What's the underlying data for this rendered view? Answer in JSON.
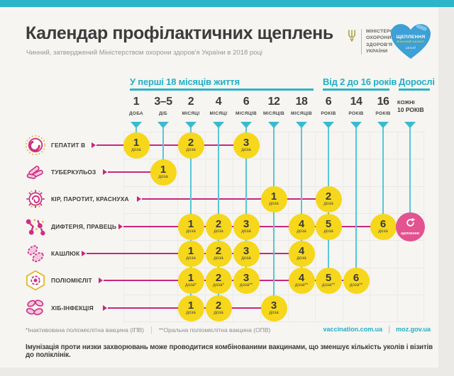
{
  "header": {
    "title": "Календар профілактичних щеплень",
    "subtitle": "Чинний, затверджений Міністерством охорони здоров'я України в 2018 році",
    "ministry_logo": {
      "icon": "trident-icon",
      "lines": [
        "МІНІСТЕРСТВО",
        "ОХОРОНИ",
        "ЗДОРОВ'Я",
        "УКРАЇНИ"
      ]
    },
    "heart_logo": {
      "icon": "heart-bandaid-icon",
      "title": "ЩЕПЛЕННЯ",
      "subtitle": "ВЧАСНИЙ ЗАХИСТ",
      "brand": "unicef",
      "color": "#3da0d6"
    }
  },
  "timeline": {
    "groups": [
      {
        "label": "У перші 18 місяців життя"
      },
      {
        "label": "Від 2 до 16 років"
      },
      {
        "label": "Дорослі"
      }
    ],
    "columns": [
      {
        "value": "1",
        "unit": "ДОБА"
      },
      {
        "value": "3–5",
        "unit": "ДІБ"
      },
      {
        "value": "2",
        "unit": "МІСЯЦІ"
      },
      {
        "value": "4",
        "unit": "МІСЯЦІ"
      },
      {
        "value": "6",
        "unit": "МІСЯЦІВ"
      },
      {
        "value": "12",
        "unit": "МІСЯЦІВ"
      },
      {
        "value": "18",
        "unit": "МІСЯЦІВ"
      },
      {
        "value": "6",
        "unit": "РОКІВ"
      },
      {
        "value": "14",
        "unit": "РОКІВ"
      },
      {
        "value": "16",
        "unit": "РОКІВ"
      },
      {
        "value": "КОЖНІ",
        "unit": "10 РОКІВ"
      }
    ]
  },
  "rows": [
    {
      "label": "ГЕПАТИТ В",
      "icon": "hepatitis-b-virus-icon",
      "doses": [
        {
          "col": 0,
          "num": "1",
          "unit": "доза"
        },
        {
          "col": 2,
          "num": "2",
          "unit": "доза"
        },
        {
          "col": 4,
          "num": "3",
          "unit": "доза"
        }
      ]
    },
    {
      "label": "ТУБЕРКУЛЬОЗ",
      "icon": "tuberculosis-bacteria-icon",
      "doses": [
        {
          "col": 1,
          "num": "1",
          "unit": "доза"
        }
      ]
    },
    {
      "label": "КІР, ПАРОТИТ, КРАСНУХА",
      "icon": "measles-virus-icon",
      "doses": [
        {
          "col": 5,
          "num": "1",
          "unit": "доза"
        },
        {
          "col": 7,
          "num": "2",
          "unit": "доза"
        }
      ]
    },
    {
      "label": "ДИФТЕРІЯ, ПРАВЕЦЬ",
      "icon": "diphtheria-bacteria-icon",
      "doses": [
        {
          "col": 2,
          "num": "1",
          "unit": "доза"
        },
        {
          "col": 3,
          "num": "2",
          "unit": "доза"
        },
        {
          "col": 4,
          "num": "3",
          "unit": "доза"
        },
        {
          "col": 6,
          "num": "4",
          "unit": "доза"
        },
        {
          "col": 7,
          "num": "5",
          "unit": "доза"
        },
        {
          "col": 9,
          "num": "6",
          "unit": "доза"
        },
        {
          "col": 10,
          "type": "booster",
          "icon": "repeat-icon",
          "label": "щеплення"
        }
      ]
    },
    {
      "label": "КАШЛЮК",
      "icon": "pertussis-bacteria-icon",
      "doses": [
        {
          "col": 2,
          "num": "1",
          "unit": "доза"
        },
        {
          "col": 3,
          "num": "2",
          "unit": "доза"
        },
        {
          "col": 4,
          "num": "3",
          "unit": "доза"
        },
        {
          "col": 6,
          "num": "4",
          "unit": "доза"
        }
      ]
    },
    {
      "label": "ПОЛІОМІЄЛІТ",
      "icon": "polio-virus-icon",
      "doses": [
        {
          "col": 2,
          "num": "1",
          "unit": "доза*"
        },
        {
          "col": 3,
          "num": "2",
          "unit": "доза*"
        },
        {
          "col": 4,
          "num": "3",
          "unit": "доза**"
        },
        {
          "col": 6,
          "num": "4",
          "unit": "доза**"
        },
        {
          "col": 7,
          "num": "5",
          "unit": "доза**"
        },
        {
          "col": 8,
          "num": "6",
          "unit": "доза**"
        }
      ]
    },
    {
      "label": "ХІБ-ІНФЕКЦІЯ",
      "icon": "hib-bacteria-icon",
      "doses": [
        {
          "col": 2,
          "num": "1",
          "unit": "доза"
        },
        {
          "col": 3,
          "num": "2",
          "unit": "доза"
        },
        {
          "col": 5,
          "num": "3",
          "unit": "доза"
        }
      ]
    }
  ],
  "footnotes": {
    "left": "*Інактивована поліомієлітна вакцина (ІПВ)",
    "separator": "|",
    "right": "**Оральна поліомієлітна вакцина (ОПВ)"
  },
  "links": {
    "site1": "vaccination.com.ua",
    "separator": "|",
    "site2": "moz.gov.ua"
  },
  "note": "Імунізація проти низки захворювань може проводитися комбінованими вакцинами, що зменшує кількість уколів і візитів до поліклінік.",
  "colors": {
    "accent_teal": "#2cb5c8",
    "dose_yellow": "#f6d71b",
    "schedule_pink": "#c9267c",
    "booster_pink": "#e2538f",
    "heart_blue": "#3da0d6"
  },
  "chart_data": {
    "type": "table",
    "title": "Календар профілактичних щеплень",
    "columns": [
      "1 доба",
      "3–5 діб",
      "2 місяці",
      "4 місяці",
      "6 місяців",
      "12 місяців",
      "18 місяців",
      "6 років",
      "14 років",
      "16 років",
      "кожні 10 років"
    ],
    "rows": [
      {
        "name": "Гепатит В",
        "doses": {
          "1 доба": "1",
          "2 місяці": "2",
          "6 місяців": "3"
        }
      },
      {
        "name": "Туберкульоз",
        "doses": {
          "3–5 діб": "1"
        }
      },
      {
        "name": "Кір, паротит, краснуха",
        "doses": {
          "12 місяців": "1",
          "6 років": "2"
        }
      },
      {
        "name": "Дифтерія, правець",
        "doses": {
          "2 місяці": "1",
          "4 місяці": "2",
          "6 місяців": "3",
          "18 місяців": "4",
          "6 років": "5",
          "16 років": "6",
          "кожні 10 років": "щеплення"
        }
      },
      {
        "name": "Кашлюк",
        "doses": {
          "2 місяці": "1",
          "4 місяці": "2",
          "6 місяців": "3",
          "18 місяців": "4"
        }
      },
      {
        "name": "Поліомієліт",
        "doses": {
          "2 місяці": "1*",
          "4 місяці": "2*",
          "6 місяців": "3**",
          "18 місяців": "4**",
          "6 років": "5**",
          "14 років": "6**"
        }
      },
      {
        "name": "ХІБ-інфекція",
        "doses": {
          "2 місяці": "1",
          "4 місяці": "2",
          "12 місяців": "3"
        }
      }
    ]
  }
}
